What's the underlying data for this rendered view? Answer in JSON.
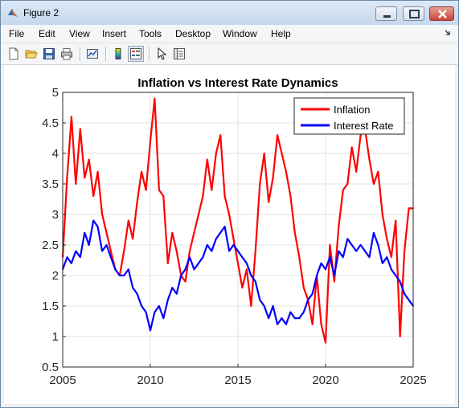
{
  "window": {
    "title": "Figure 2"
  },
  "menu": [
    "File",
    "Edit",
    "View",
    "Insert",
    "Tools",
    "Desktop",
    "Window",
    "Help"
  ],
  "toolbar": {
    "buttons": [
      "new-figure",
      "open-file",
      "save-figure",
      "print-figure",
      "link-plot",
      "insert-colorbar",
      "insert-legend",
      "edit-plot",
      "plot-tools"
    ]
  },
  "chart_data": {
    "type": "line",
    "title": "Inflation vs Interest Rate Dynamics",
    "xlabel": "",
    "ylabel": "",
    "xlim": [
      2005,
      2025
    ],
    "ylim": [
      0.5,
      5
    ],
    "xticks": [
      "2005",
      "2010",
      "2015",
      "2020",
      "2025"
    ],
    "yticks": [
      "0.5",
      "1",
      "1.5",
      "2",
      "2.5",
      "3",
      "3.5",
      "4",
      "4.5",
      "5"
    ],
    "grid": true,
    "legend_position": "top-right",
    "x": [
      2005.0,
      2005.25,
      2005.5,
      2005.75,
      2006.0,
      2006.25,
      2006.5,
      2006.75,
      2007.0,
      2007.25,
      2007.5,
      2007.75,
      2008.0,
      2008.25,
      2008.5,
      2008.75,
      2009.0,
      2009.25,
      2009.5,
      2009.75,
      2010.0,
      2010.25,
      2010.5,
      2010.75,
      2011.0,
      2011.25,
      2011.5,
      2011.75,
      2012.0,
      2012.25,
      2012.5,
      2012.75,
      2013.0,
      2013.25,
      2013.5,
      2013.75,
      2014.0,
      2014.25,
      2014.5,
      2014.75,
      2015.0,
      2015.25,
      2015.5,
      2015.75,
      2016.0,
      2016.25,
      2016.5,
      2016.75,
      2017.0,
      2017.25,
      2017.5,
      2017.75,
      2018.0,
      2018.25,
      2018.5,
      2018.75,
      2019.0,
      2019.25,
      2019.5,
      2019.75,
      2020.0,
      2020.25,
      2020.5,
      2020.75,
      2021.0,
      2021.25,
      2021.5,
      2021.75,
      2022.0,
      2022.25,
      2022.5,
      2022.75,
      2023.0,
      2023.25,
      2023.5,
      2023.75,
      2024.0,
      2024.25,
      2024.5,
      2024.75,
      2025.0
    ],
    "series": [
      {
        "name": "Inflation",
        "color": "#ff0000",
        "values": [
          2.3,
          3.6,
          4.6,
          3.5,
          4.4,
          3.6,
          3.9,
          3.3,
          3.7,
          3.0,
          2.7,
          2.4,
          2.1,
          2.0,
          2.4,
          2.9,
          2.6,
          3.2,
          3.7,
          3.4,
          4.2,
          4.9,
          3.4,
          3.3,
          2.2,
          2.7,
          2.4,
          2.0,
          1.9,
          2.4,
          2.7,
          3.0,
          3.3,
          3.9,
          3.4,
          4.0,
          4.3,
          3.3,
          3.0,
          2.6,
          2.2,
          1.8,
          2.1,
          1.5,
          2.4,
          3.5,
          4.0,
          3.2,
          3.6,
          4.3,
          4.0,
          3.7,
          3.3,
          2.7,
          2.3,
          1.8,
          1.6,
          1.2,
          2.0,
          1.2,
          0.9,
          2.5,
          1.9,
          2.8,
          3.4,
          3.5,
          4.1,
          3.7,
          4.3,
          4.4,
          3.9,
          3.5,
          3.7,
          3.0,
          2.6,
          2.3,
          2.9,
          1.0,
          2.4,
          3.1,
          3.1
        ]
      },
      {
        "name": "Interest Rate",
        "color": "#0000ff",
        "values": [
          2.1,
          2.3,
          2.2,
          2.4,
          2.3,
          2.7,
          2.5,
          2.9,
          2.8,
          2.4,
          2.5,
          2.3,
          2.1,
          2.0,
          2.0,
          2.1,
          1.8,
          1.7,
          1.5,
          1.4,
          1.1,
          1.4,
          1.5,
          1.3,
          1.6,
          1.8,
          1.7,
          2.0,
          2.1,
          2.3,
          2.1,
          2.2,
          2.3,
          2.5,
          2.4,
          2.6,
          2.7,
          2.8,
          2.4,
          2.5,
          2.4,
          2.3,
          2.2,
          2.0,
          1.9,
          1.6,
          1.5,
          1.3,
          1.5,
          1.2,
          1.3,
          1.2,
          1.4,
          1.3,
          1.3,
          1.4,
          1.6,
          1.7,
          2.0,
          2.2,
          2.1,
          2.3,
          2.0,
          2.4,
          2.3,
          2.6,
          2.5,
          2.4,
          2.5,
          2.4,
          2.3,
          2.7,
          2.5,
          2.2,
          2.3,
          2.1,
          2.0,
          1.9,
          1.7,
          1.6,
          1.5
        ]
      }
    ]
  }
}
